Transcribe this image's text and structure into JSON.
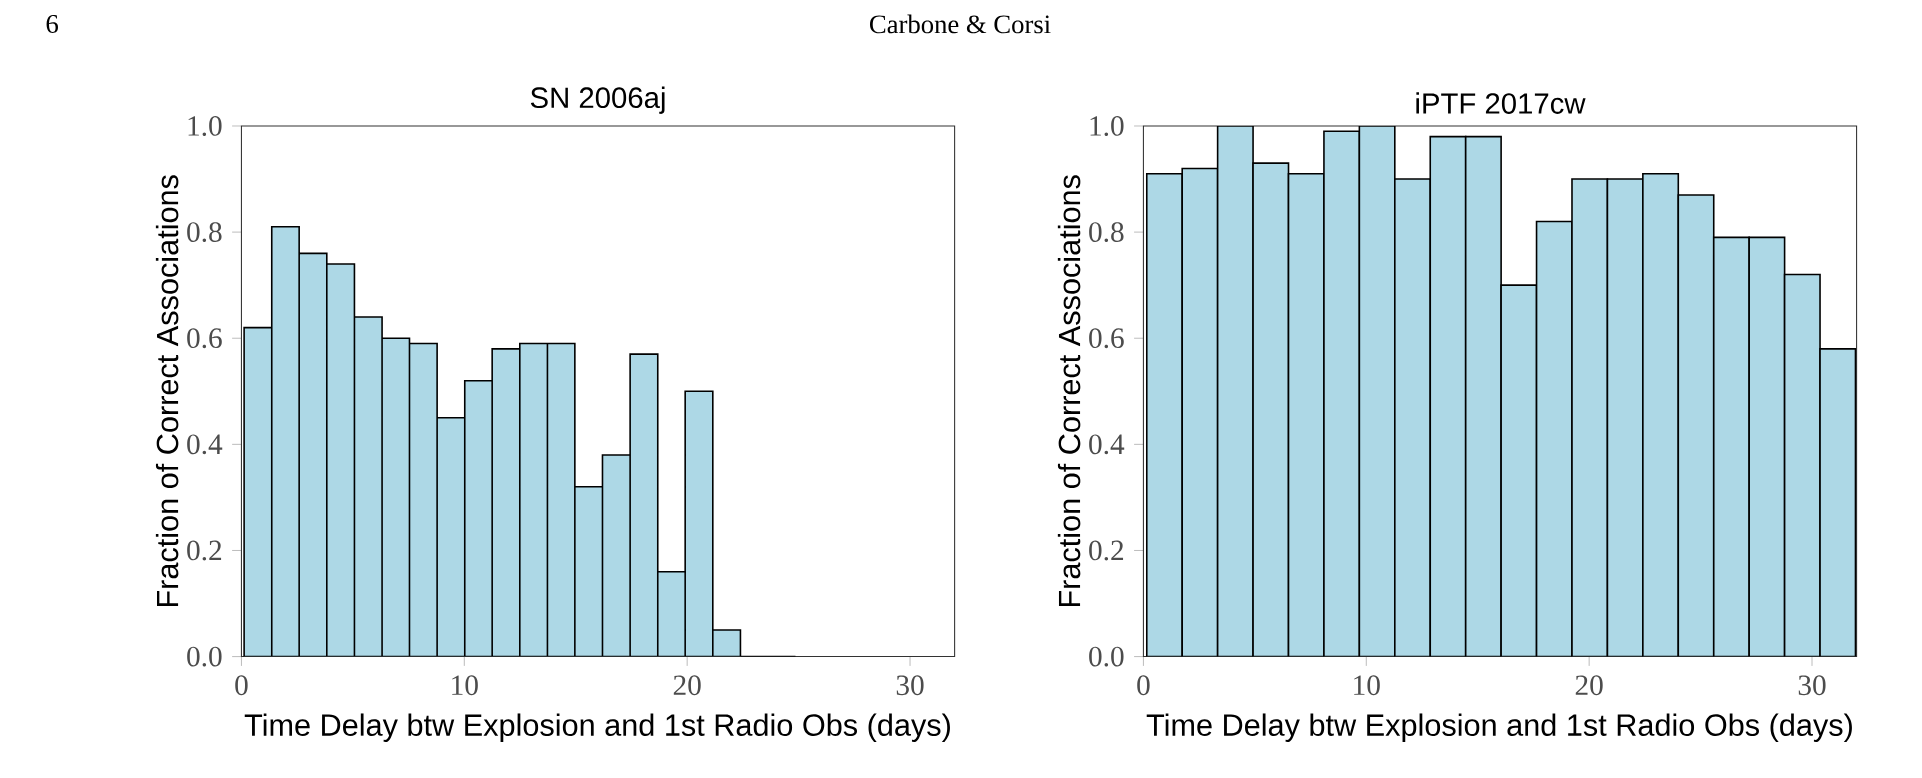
{
  "chart_data": [
    {
      "type": "histogram",
      "title": "SN 2006aj",
      "xlabel": "Time Delay btw Explosion and 1st Radio Obs (days)",
      "ylabel": "Fraction of Correct Associations",
      "color": "#add8e6",
      "bins": [
        0.12,
        1.36,
        2.59,
        3.83,
        5.07,
        6.31,
        7.54,
        8.78,
        10.02,
        11.25,
        12.49,
        13.73,
        14.96,
        16.2,
        17.44,
        18.68,
        19.91,
        21.15,
        22.39,
        23.62,
        24.86
      ],
      "values": [
        0.62,
        0.81,
        0.76,
        0.74,
        0.64,
        0.6,
        0.59,
        0.45,
        0.52,
        0.58,
        0.59,
        0.59,
        0.32,
        0.38,
        0.57,
        0.16,
        0.5,
        0.05,
        0,
        0
      ],
      "xlim": [
        0,
        32
      ],
      "ylim": [
        0,
        1
      ],
      "xticks": [
        0,
        10,
        20,
        30
      ],
      "yticks": [
        {
          "value": 0,
          "label": "0.0"
        },
        {
          "value": 0.2,
          "label": "0.2"
        },
        {
          "value": 0.4,
          "label": "0.4"
        },
        {
          "value": 0.6,
          "label": "0.6"
        },
        {
          "value": 0.8,
          "label": "0.8"
        },
        {
          "value": 1,
          "label": "1.0"
        }
      ],
      "annotations": [
        "6",
        "Carbone & Corsi"
      ]
    },
    {
      "type": "histogram",
      "title": "iPTF 2017cw",
      "xlabel": "Time Delay btw Explosion and 1st Radio Obs (days)",
      "ylabel": "Fraction of Correct Associations",
      "color": "#add8e6",
      "bins": [
        0.15,
        1.74,
        3.33,
        4.92,
        6.51,
        8.1,
        9.69,
        11.28,
        12.87,
        14.46,
        16.05,
        17.64,
        19.23,
        20.82,
        22.41,
        24.0,
        25.59,
        27.18,
        28.77,
        30.36,
        31.95
      ],
      "values": [
        0.91,
        0.92,
        1.0,
        0.93,
        0.91,
        0.99,
        1.0,
        0.9,
        0.98,
        0.98,
        0.7,
        0.82,
        0.9,
        0.9,
        0.91,
        0.87,
        0.79,
        0.79,
        0.72,
        0.58
      ],
      "xlim": [
        0,
        32
      ],
      "ylim": [
        0,
        1
      ],
      "xticks": [
        0,
        10,
        20,
        30
      ],
      "yticks": [
        {
          "value": 0,
          "label": "0.0"
        },
        {
          "value": 0.2,
          "label": "0.2"
        },
        {
          "value": 0.4,
          "label": "0.4"
        },
        {
          "value": 0.6,
          "label": "0.6"
        },
        {
          "value": 0.8,
          "label": "0.8"
        },
        {
          "value": 1,
          "label": "1.0"
        }
      ]
    }
  ]
}
